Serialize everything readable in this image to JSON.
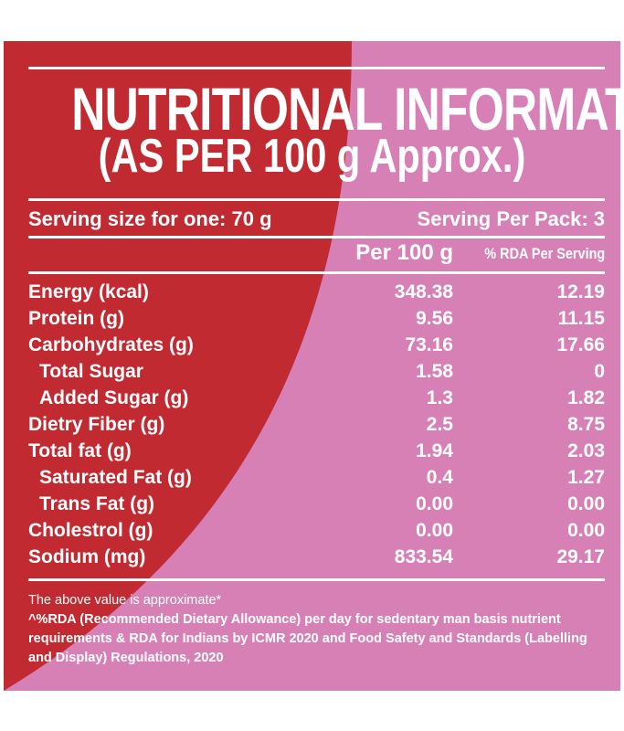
{
  "title": {
    "line1": "NUTRITIONAL INFORMATION",
    "line2": "(AS PER 100 g Approx.)"
  },
  "serving": {
    "size": "Serving size for one: 70 g",
    "per_pack": "Serving Per Pack: 3"
  },
  "columns": {
    "per_100g": "Per 100 g",
    "rda": "% RDA Per Serving"
  },
  "rows": [
    {
      "name": "Energy (kcal)",
      "per100": "348.38",
      "rda": "12.19"
    },
    {
      "name": "Protein (g)",
      "per100": "9.56",
      "rda": "11.15"
    },
    {
      "name": "Carbohydrates (g)",
      "per100": "73.16",
      "rda": "17.66"
    },
    {
      "name": "Total Sugar",
      "per100": "1.58",
      "rda": "0"
    },
    {
      "name": "Added Sugar (g)",
      "per100": "1.3",
      "rda": "1.82"
    },
    {
      "name": "Dietry Fiber (g)",
      "per100": "2.5",
      "rda": "8.75"
    },
    {
      "name": "Total fat (g)",
      "per100": "1.94",
      "rda": "2.03"
    },
    {
      "name": "Saturated Fat (g)",
      "per100": "0.4",
      "rda": "1.27"
    },
    {
      "name": "Trans Fat (g)",
      "per100": "0.00",
      "rda": "0.00"
    },
    {
      "name": "Cholestrol (g)",
      "per100": "0.00",
      "rda": "0.00"
    },
    {
      "name": "Sodium (mg)",
      "per100": "833.54",
      "rda": "29.17"
    }
  ],
  "footnotes": {
    "note1": "The above value is approximate*",
    "note2": "^%RDA (Recommended Dietary Allowance) per day for sedentary man basis nutrient requirements & RDA for Indians by ICMR 2020 and Food Safety and Standards (Labelling and Display) Regulations, 2020"
  },
  "colors": {
    "background_pink": "#d680b6",
    "accent_red": "#c22a32",
    "text": "#ffffff"
  }
}
